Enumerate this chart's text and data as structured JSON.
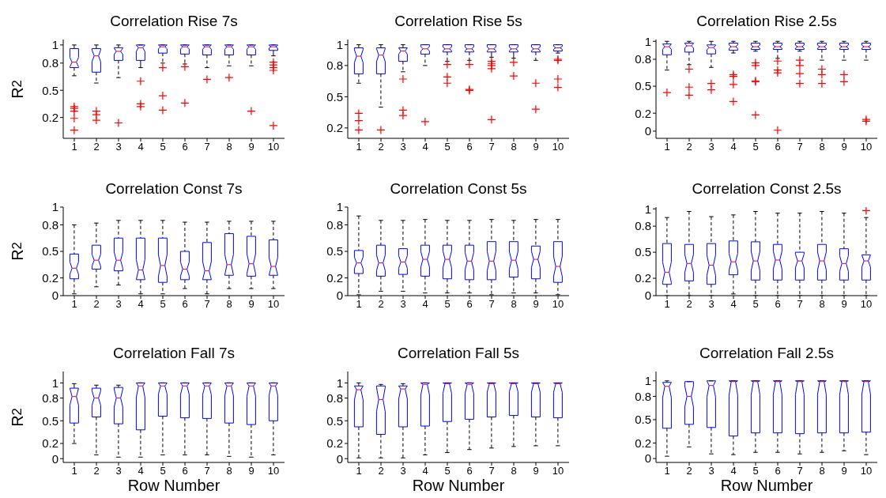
{
  "chart_data": [
    {
      "type": "box",
      "title": "Correlation Rise 7s",
      "ylabel": "R$^{2}$",
      "categories": [
        "1",
        "2",
        "3",
        "4",
        "5",
        "6",
        "7",
        "8",
        "9",
        "10"
      ],
      "color": "#0000ff",
      "ylim": [
        -0.03,
        1.06
      ],
      "yticks": [
        0.2,
        0.5,
        0.8,
        1
      ],
      "boxes": [
        {
          "low": 0.66,
          "q1": 0.75,
          "median": 0.81,
          "q3": 0.96,
          "high": 1.0,
          "outliers": [
            0.32,
            0.3,
            0.27,
            0.19,
            0.06
          ]
        },
        {
          "low": 0.58,
          "q1": 0.7,
          "median": 0.88,
          "q3": 0.96,
          "high": 1.0,
          "outliers": [
            0.27,
            0.23,
            0.17
          ]
        },
        {
          "low": 0.64,
          "q1": 0.83,
          "median": 0.93,
          "q3": 0.97,
          "high": 1.0,
          "outliers": [
            0.14
          ]
        },
        {
          "low": 0.75,
          "q1": 0.83,
          "median": 0.97,
          "q3": 1.0,
          "high": 1.0,
          "outliers": [
            0.6,
            0.35,
            0.32
          ]
        },
        {
          "low": 0.8,
          "q1": 0.91,
          "median": 0.98,
          "q3": 1.0,
          "high": 1.0,
          "outliers": [
            0.75,
            0.44,
            0.28
          ]
        },
        {
          "low": 0.79,
          "q1": 0.9,
          "median": 0.98,
          "q3": 1.0,
          "high": 1.0,
          "outliers": [
            0.76,
            0.36
          ]
        },
        {
          "low": 0.75,
          "q1": 0.89,
          "median": 0.98,
          "q3": 1.0,
          "high": 1.0,
          "outliers": [
            0.62
          ]
        },
        {
          "low": 0.77,
          "q1": 0.89,
          "median": 0.98,
          "q3": 1.0,
          "high": 1.0,
          "outliers": [
            0.64
          ]
        },
        {
          "low": 0.77,
          "q1": 0.89,
          "median": 0.98,
          "q3": 1.0,
          "high": 1.0,
          "outliers": [
            0.27
          ]
        },
        {
          "low": 0.88,
          "q1": 0.94,
          "median": 0.98,
          "q3": 1.0,
          "high": 1.0,
          "outliers": [
            0.81,
            0.78,
            0.75,
            0.72,
            0.11
          ]
        }
      ]
    },
    {
      "type": "box",
      "title": "Correlation Rise 5s",
      "categories": [
        "1",
        "2",
        "3",
        "4",
        "5",
        "6",
        "7",
        "8",
        "9",
        "10"
      ],
      "color": "#0000ff",
      "ylim": [
        0.1,
        1.05
      ],
      "yticks": [
        0.2,
        0.5,
        0.8,
        1
      ],
      "boxes": [
        {
          "low": 0.63,
          "q1": 0.72,
          "median": 0.89,
          "q3": 0.97,
          "high": 1.0,
          "outliers": [
            0.34,
            0.27,
            0.18
          ]
        },
        {
          "low": 0.4,
          "q1": 0.72,
          "median": 0.9,
          "q3": 0.97,
          "high": 1.0,
          "outliers": [
            0.18
          ]
        },
        {
          "low": 0.74,
          "q1": 0.84,
          "median": 0.94,
          "q3": 0.97,
          "high": 1.0,
          "outliers": [
            0.67,
            0.37,
            0.32
          ]
        },
        {
          "low": 0.8,
          "q1": 0.91,
          "median": 0.96,
          "q3": 1.0,
          "high": 1.0,
          "outliers": [
            0.26
          ]
        },
        {
          "low": 0.84,
          "q1": 0.93,
          "median": 0.96,
          "q3": 1.0,
          "high": 1.0,
          "outliers": [
            0.81,
            0.69,
            0.63
          ]
        },
        {
          "low": 0.85,
          "q1": 0.93,
          "median": 0.96,
          "q3": 1.0,
          "high": 1.0,
          "outliers": [
            0.81,
            0.57,
            0.56
          ]
        },
        {
          "low": 0.88,
          "q1": 0.93,
          "median": 0.96,
          "q3": 1.0,
          "high": 1.0,
          "outliers": [
            0.84,
            0.82,
            0.8,
            0.77,
            0.28
          ]
        },
        {
          "low": 0.87,
          "q1": 0.93,
          "median": 0.96,
          "q3": 1.0,
          "high": 1.0,
          "outliers": [
            0.83,
            0.7
          ]
        },
        {
          "low": 0.85,
          "q1": 0.93,
          "median": 0.96,
          "q3": 1.0,
          "high": 1.0,
          "outliers": [
            0.63,
            0.38
          ]
        },
        {
          "low": 0.92,
          "q1": 0.94,
          "median": 0.97,
          "q3": 1.0,
          "high": 1.0,
          "outliers": [
            0.86,
            0.85,
            0.67,
            0.59
          ]
        }
      ]
    },
    {
      "type": "box",
      "title": "Correlation Rise 2.5s",
      "categories": [
        "1",
        "2",
        "3",
        "4",
        "5",
        "6",
        "7",
        "8",
        "9",
        "10"
      ],
      "color": "#0000ff",
      "ylim": [
        -0.08,
        1.02
      ],
      "yticks": [
        0,
        0.2,
        0.5,
        0.8,
        1
      ],
      "boxes": [
        {
          "low": 0.68,
          "q1": 0.85,
          "median": 0.94,
          "q3": 0.97,
          "high": 1.0,
          "outliers": [
            0.43
          ]
        },
        {
          "low": 0.74,
          "q1": 0.88,
          "median": 0.95,
          "q3": 0.98,
          "high": 1.0,
          "outliers": [
            0.69,
            0.49,
            0.4
          ]
        },
        {
          "low": 0.71,
          "q1": 0.86,
          "median": 0.93,
          "q3": 0.96,
          "high": 1.0,
          "outliers": [
            0.53,
            0.46
          ]
        },
        {
          "low": 0.87,
          "q1": 0.9,
          "median": 0.94,
          "q3": 0.98,
          "high": 1.0,
          "outliers": [
            0.63,
            0.61,
            0.52,
            0.33
          ]
        },
        {
          "low": 0.89,
          "q1": 0.91,
          "median": 0.94,
          "q3": 0.98,
          "high": 1.0,
          "outliers": [
            0.76,
            0.73,
            0.56,
            0.55,
            0.18
          ]
        },
        {
          "low": 0.81,
          "q1": 0.91,
          "median": 0.94,
          "q3": 0.98,
          "high": 1.0,
          "outliers": [
            0.78,
            0.68,
            0.65,
            0.01
          ]
        },
        {
          "low": 0.89,
          "q1": 0.91,
          "median": 0.94,
          "q3": 0.98,
          "high": 1.0,
          "outliers": [
            0.79,
            0.73,
            0.64,
            0.53
          ]
        },
        {
          "low": 0.79,
          "q1": 0.91,
          "median": 0.94,
          "q3": 0.98,
          "high": 1.0,
          "outliers": [
            0.69,
            0.63,
            0.53
          ]
        },
        {
          "low": 0.79,
          "q1": 0.91,
          "median": 0.94,
          "q3": 0.98,
          "high": 1.0,
          "outliers": [
            0.63,
            0.55
          ]
        },
        {
          "low": 0.79,
          "q1": 0.91,
          "median": 0.94,
          "q3": 0.98,
          "high": 1.0,
          "outliers": [
            0.13,
            0.11
          ]
        }
      ]
    },
    {
      "type": "box",
      "title": "Correlation Const 7s",
      "ylabel": "R$^{2}$",
      "categories": [
        "1",
        "2",
        "3",
        "4",
        "5",
        "6",
        "7",
        "8",
        "9",
        "10"
      ],
      "color": "#0000ff",
      "ylim": [
        0,
        1
      ],
      "yticks": [
        0,
        0.2,
        0.5,
        0.8,
        1
      ],
      "boxes": [
        {
          "low": 0.02,
          "q1": 0.19,
          "median": 0.31,
          "q3": 0.47,
          "high": 0.8
        },
        {
          "low": 0.1,
          "q1": 0.3,
          "median": 0.4,
          "q3": 0.57,
          "high": 0.82
        },
        {
          "low": 0.12,
          "q1": 0.28,
          "median": 0.4,
          "q3": 0.65,
          "high": 0.85
        },
        {
          "low": 0.02,
          "q1": 0.18,
          "median": 0.29,
          "q3": 0.65,
          "high": 0.85
        },
        {
          "low": 0.02,
          "q1": 0.15,
          "median": 0.34,
          "q3": 0.65,
          "high": 0.85
        },
        {
          "low": 0.08,
          "q1": 0.18,
          "median": 0.3,
          "q3": 0.5,
          "high": 0.83
        },
        {
          "low": 0.02,
          "q1": 0.18,
          "median": 0.28,
          "q3": 0.6,
          "high": 0.83
        },
        {
          "low": 0.08,
          "q1": 0.23,
          "median": 0.35,
          "q3": 0.7,
          "high": 0.84
        },
        {
          "low": 0.08,
          "q1": 0.22,
          "median": 0.36,
          "q3": 0.67,
          "high": 0.84
        },
        {
          "low": 0.08,
          "q1": 0.23,
          "median": 0.33,
          "q3": 0.63,
          "high": 0.84
        }
      ]
    },
    {
      "type": "box",
      "title": "Correlation Const 5s",
      "categories": [
        "1",
        "2",
        "3",
        "4",
        "5",
        "6",
        "7",
        "8",
        "9",
        "10"
      ],
      "color": "#0000ff",
      "ylim": [
        0,
        1
      ],
      "yticks": [
        0,
        0.2,
        0.5,
        0.8,
        1
      ],
      "boxes": [
        {
          "low": 0.01,
          "q1": 0.25,
          "median": 0.37,
          "q3": 0.51,
          "high": 0.9
        },
        {
          "low": 0.05,
          "q1": 0.22,
          "median": 0.37,
          "q3": 0.57,
          "high": 0.85
        },
        {
          "low": 0.05,
          "q1": 0.24,
          "median": 0.38,
          "q3": 0.53,
          "high": 0.85
        },
        {
          "low": 0.03,
          "q1": 0.22,
          "median": 0.41,
          "q3": 0.57,
          "high": 0.86
        },
        {
          "low": 0.03,
          "q1": 0.19,
          "median": 0.41,
          "q3": 0.57,
          "high": 0.85
        },
        {
          "low": 0.03,
          "q1": 0.18,
          "median": 0.39,
          "q3": 0.57,
          "high": 0.85
        },
        {
          "low": 0.01,
          "q1": 0.18,
          "median": 0.39,
          "q3": 0.61,
          "high": 0.86
        },
        {
          "low": 0.03,
          "q1": 0.21,
          "median": 0.4,
          "q3": 0.61,
          "high": 0.85
        },
        {
          "low": 0.03,
          "q1": 0.19,
          "median": 0.41,
          "q3": 0.56,
          "high": 0.86
        },
        {
          "low": 0.01,
          "q1": 0.15,
          "median": 0.33,
          "q3": 0.61,
          "high": 0.86
        }
      ]
    },
    {
      "type": "box",
      "title": "Correlation Const 2.5s",
      "categories": [
        "1",
        "2",
        "3",
        "4",
        "5",
        "6",
        "7",
        "8",
        "9",
        "10"
      ],
      "color": "#0000ff",
      "ylim": [
        0,
        1.02
      ],
      "yticks": [
        0,
        0.2,
        0.5,
        0.8,
        1
      ],
      "boxes": [
        {
          "low": 0.0,
          "q1": 0.13,
          "median": 0.27,
          "q3": 0.6,
          "high": 0.9
        },
        {
          "low": 0.0,
          "q1": 0.17,
          "median": 0.37,
          "q3": 0.59,
          "high": 0.97
        },
        {
          "low": 0.0,
          "q1": 0.13,
          "median": 0.35,
          "q3": 0.6,
          "high": 0.91
        },
        {
          "low": 0.02,
          "q1": 0.24,
          "median": 0.39,
          "q3": 0.63,
          "high": 0.93
        },
        {
          "low": 0.0,
          "q1": 0.18,
          "median": 0.4,
          "q3": 0.62,
          "high": 0.97
        },
        {
          "low": 0.0,
          "q1": 0.18,
          "median": 0.41,
          "q3": 0.59,
          "high": 0.95
        },
        {
          "low": 0.0,
          "q1": 0.18,
          "median": 0.4,
          "q3": 0.5,
          "high": 0.95
        },
        {
          "low": 0.0,
          "q1": 0.18,
          "median": 0.4,
          "q3": 0.59,
          "high": 0.97
        },
        {
          "low": 0.0,
          "q1": 0.18,
          "median": 0.37,
          "q3": 0.54,
          "high": 0.95
        },
        {
          "low": 0.0,
          "q1": 0.18,
          "median": 0.4,
          "q3": 0.47,
          "high": 0.9,
          "outliers": [
            0.98
          ]
        }
      ]
    },
    {
      "type": "box",
      "title": "Correlation Fall 7s",
      "ylabel": "R$^{2}$",
      "xlabel": "Row Number",
      "categories": [
        "1",
        "2",
        "3",
        "4",
        "5",
        "6",
        "7",
        "8",
        "9",
        "10"
      ],
      "color": "#0000ff",
      "ylim": [
        -0.05,
        1.15
      ],
      "yticks": [
        0,
        0.2,
        0.5,
        0.8,
        1
      ],
      "boxes": [
        {
          "low": 0.2,
          "q1": 0.47,
          "median": 0.82,
          "q3": 0.93,
          "high": 0.99
        },
        {
          "low": 0.05,
          "q1": 0.55,
          "median": 0.8,
          "q3": 0.93,
          "high": 0.97
        },
        {
          "low": 0.02,
          "q1": 0.46,
          "median": 0.8,
          "q3": 0.94,
          "high": 0.97
        },
        {
          "low": 0.02,
          "q1": 0.38,
          "median": 0.96,
          "q3": 1.0,
          "high": 1.0
        },
        {
          "low": 0.05,
          "q1": 0.56,
          "median": 0.96,
          "q3": 1.0,
          "high": 1.0
        },
        {
          "low": 0.05,
          "q1": 0.54,
          "median": 0.96,
          "q3": 1.0,
          "high": 1.0
        },
        {
          "low": 0.05,
          "q1": 0.53,
          "median": 0.96,
          "q3": 1.0,
          "high": 1.0
        },
        {
          "low": 0.03,
          "q1": 0.47,
          "median": 0.96,
          "q3": 1.0,
          "high": 1.0
        },
        {
          "low": 0.02,
          "q1": 0.45,
          "median": 0.96,
          "q3": 1.0,
          "high": 1.0
        },
        {
          "low": 0.05,
          "q1": 0.5,
          "median": 0.96,
          "q3": 1.0,
          "high": 1.0
        }
      ]
    },
    {
      "type": "box",
      "title": "Correlation Fall 5s",
      "xlabel": "Row Number",
      "categories": [
        "1",
        "2",
        "3",
        "4",
        "5",
        "6",
        "7",
        "8",
        "9",
        "10"
      ],
      "color": "#0000ff",
      "ylim": [
        -0.05,
        1.15
      ],
      "yticks": [
        0,
        0.2,
        0.5,
        0.8,
        1
      ],
      "boxes": [
        {
          "low": 0.01,
          "q1": 0.42,
          "median": 0.91,
          "q3": 0.96,
          "high": 1.0
        },
        {
          "low": 0.01,
          "q1": 0.32,
          "median": 0.78,
          "q3": 0.96,
          "high": 0.98
        },
        {
          "low": 0.01,
          "q1": 0.42,
          "median": 0.92,
          "q3": 0.96,
          "high": 0.99
        },
        {
          "low": 0.05,
          "q1": 0.43,
          "median": 0.98,
          "q3": 1.0,
          "high": 1.0
        },
        {
          "low": 0.08,
          "q1": 0.49,
          "median": 0.99,
          "q3": 1.0,
          "high": 1.0
        },
        {
          "low": 0.12,
          "q1": 0.52,
          "median": 0.98,
          "q3": 1.0,
          "high": 1.0
        },
        {
          "low": 0.14,
          "q1": 0.55,
          "median": 0.99,
          "q3": 1.0,
          "high": 1.0
        },
        {
          "low": 0.16,
          "q1": 0.57,
          "median": 0.99,
          "q3": 1.0,
          "high": 1.0
        },
        {
          "low": 0.17,
          "q1": 0.55,
          "median": 0.99,
          "q3": 1.0,
          "high": 1.0
        },
        {
          "low": 0.17,
          "q1": 0.54,
          "median": 0.99,
          "q3": 1.0,
          "high": 1.0
        }
      ]
    },
    {
      "type": "box",
      "title": "Correlation Fall 2.5s",
      "xlabel": "Row Number",
      "categories": [
        "1",
        "2",
        "3",
        "4",
        "5",
        "6",
        "7",
        "8",
        "9",
        "10"
      ],
      "color": "#0000ff",
      "ylim": [
        -0.05,
        1.12
      ],
      "yticks": [
        0,
        0.2,
        0.5,
        0.8,
        1
      ],
      "boxes": [
        {
          "low": 0.03,
          "q1": 0.39,
          "median": 0.93,
          "q3": 0.98,
          "high": 1.0
        },
        {
          "low": 0.15,
          "q1": 0.44,
          "median": 0.8,
          "q3": 0.99,
          "high": 0.99
        },
        {
          "low": 0.06,
          "q1": 0.4,
          "median": 0.94,
          "q3": 1.0,
          "high": 1.0
        },
        {
          "low": 0.05,
          "q1": 0.29,
          "median": 0.99,
          "q3": 1.0,
          "high": 1.0
        },
        {
          "low": 0.08,
          "q1": 0.33,
          "median": 0.99,
          "q3": 1.0,
          "high": 1.0
        },
        {
          "low": 0.08,
          "q1": 0.33,
          "median": 0.99,
          "q3": 1.0,
          "high": 1.0
        },
        {
          "low": 0.06,
          "q1": 0.32,
          "median": 0.99,
          "q3": 1.0,
          "high": 1.0
        },
        {
          "low": 0.08,
          "q1": 0.33,
          "median": 0.99,
          "q3": 1.0,
          "high": 1.0
        },
        {
          "low": 0.1,
          "q1": 0.33,
          "median": 0.99,
          "q3": 1.0,
          "high": 1.0
        },
        {
          "low": 0.05,
          "q1": 0.34,
          "median": 0.99,
          "q3": 1.0,
          "high": 1.0
        }
      ]
    }
  ]
}
